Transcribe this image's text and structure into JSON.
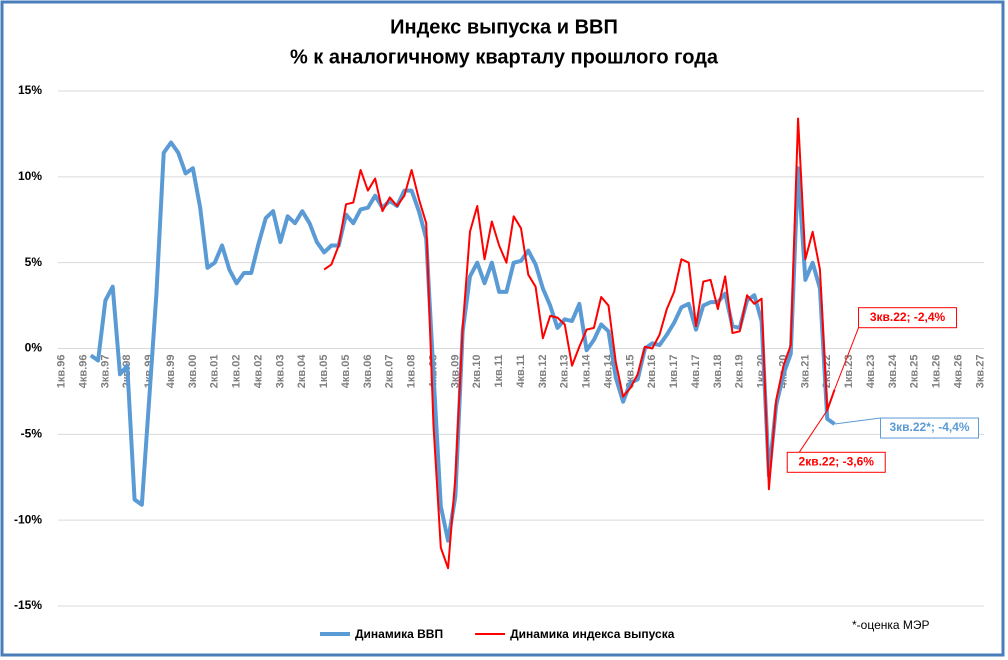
{
  "chart_data": {
    "type": "line",
    "title": "Индекс выпуска и ВВП",
    "subtitle": "% к аналогичному кварталу прошлого года",
    "note": "*-оценка МЭР",
    "categories": [
      "1кв.96",
      null,
      null,
      "4кв.96",
      null,
      null,
      "3кв.97",
      null,
      null,
      "2кв.98",
      null,
      null,
      "1кв.99",
      null,
      null,
      "4кв.99",
      null,
      null,
      "3кв.00",
      null,
      null,
      "2кв.01",
      null,
      null,
      "1кв.02",
      null,
      null,
      "4кв.02",
      null,
      null,
      "3кв.03",
      null,
      null,
      "2кв.04",
      null,
      null,
      "1кв.05",
      null,
      null,
      "4кв.05",
      null,
      null,
      "3кв.06",
      null,
      null,
      "2кв.07",
      null,
      null,
      "1кв.08",
      null,
      null,
      "4кв.08",
      null,
      null,
      "3кв.09",
      null,
      null,
      "2кв.10",
      null,
      null,
      "1кв.11",
      null,
      null,
      "4кв.11",
      null,
      null,
      "3кв.12",
      null,
      null,
      "2кв.13",
      null,
      null,
      "1кв.14",
      null,
      null,
      "4кв.14",
      null,
      null,
      "3кв.15",
      null,
      null,
      "2кв.16",
      null,
      null,
      "1кв.17",
      null,
      null,
      "4кв.17",
      null,
      null,
      "3кв.18",
      null,
      null,
      "2кв.19",
      null,
      null,
      "1кв.20",
      null,
      null,
      "4кв.20",
      null,
      null,
      "3кв.21",
      null,
      null,
      "2кв.22",
      null,
      null,
      "1кв.23",
      null,
      null,
      "4кв.23",
      null,
      null,
      "3кв.24",
      null,
      null,
      "2кв.25",
      null,
      null,
      "1кв.26",
      null,
      null,
      "4кв.26",
      null,
      null,
      "3кв.27"
    ],
    "series": [
      {
        "name": "Динамика ВВП",
        "color": "#5b9bd5",
        "values": [
          null,
          null,
          null,
          null,
          -0.4,
          -0.7,
          2.8,
          3.6,
          -1.5,
          -1.0,
          -8.8,
          -9.1,
          -3.0,
          3.2,
          11.4,
          12.0,
          11.4,
          10.2,
          10.5,
          8.2,
          4.7,
          5.0,
          6.0,
          4.6,
          3.8,
          4.4,
          4.4,
          6.1,
          7.6,
          8.0,
          6.2,
          7.7,
          7.3,
          8.0,
          7.3,
          6.2,
          5.6,
          6.0,
          6.0,
          7.8,
          7.3,
          8.1,
          8.2,
          8.9,
          8.2,
          8.6,
          8.3,
          9.2,
          9.2,
          8.0,
          6.4,
          -1.5,
          -9.2,
          -11.2,
          -8.6,
          1.0,
          4.2,
          5.0,
          3.8,
          5.0,
          3.3,
          3.3,
          5.0,
          5.1,
          5.7,
          4.9,
          3.5,
          2.5,
          1.2,
          1.7,
          1.6,
          2.6,
          -0.1,
          0.5,
          1.4,
          1.0,
          -1.7,
          -3.1,
          -2.0,
          -1.8,
          0.0,
          0.3,
          0.2,
          0.8,
          1.5,
          2.4,
          2.6,
          1.1,
          2.5,
          2.7,
          2.7,
          3.2,
          1.3,
          1.2,
          2.8,
          3.1,
          1.6,
          -7.4,
          -3.3,
          -1.5,
          -0.3,
          10.5,
          4.0,
          5.0,
          3.5,
          -4.1,
          -4.4,
          null,
          null,
          null,
          null,
          null,
          null,
          null,
          null,
          null,
          null,
          null,
          null,
          null,
          null,
          null,
          null,
          null,
          null,
          null,
          null
        ],
        "value_labels": [
          null,
          null,
          null,
          null,
          null,
          null,
          null,
          null,
          null,
          null,
          null,
          null,
          null,
          null,
          null,
          null,
          null,
          null,
          null,
          null,
          null,
          null,
          null,
          null,
          null,
          null,
          null,
          null,
          null,
          null,
          null,
          null,
          null,
          null,
          null,
          null,
          null,
          null,
          null,
          null,
          null,
          null,
          null,
          null,
          null,
          null,
          null,
          null,
          null,
          null,
          null,
          null,
          null,
          null,
          null,
          null,
          null,
          null,
          null,
          null,
          null,
          null,
          null,
          null,
          null,
          null,
          null,
          null,
          null,
          null,
          null,
          null,
          null,
          null,
          null,
          null,
          null,
          null,
          null,
          null,
          null,
          null,
          null,
          null,
          null,
          null,
          null,
          null,
          null,
          null,
          null,
          null,
          null,
          null,
          null,
          null,
          null,
          null,
          null,
          null,
          null,
          null,
          null,
          null,
          null,
          null,
          "3кв.22*; -4,4%",
          null,
          null,
          null,
          null,
          null,
          null,
          null,
          null,
          null,
          null,
          null,
          null,
          null,
          null,
          null,
          null,
          null,
          null,
          null,
          null
        ]
      },
      {
        "name": "Динамика индекса выпуска",
        "color": "#ff0000",
        "values": [
          null,
          null,
          null,
          null,
          null,
          null,
          null,
          null,
          null,
          null,
          null,
          null,
          null,
          null,
          null,
          null,
          null,
          null,
          null,
          null,
          null,
          null,
          null,
          null,
          null,
          null,
          null,
          null,
          null,
          null,
          null,
          null,
          null,
          null,
          null,
          null,
          4.6,
          4.9,
          6.0,
          8.4,
          8.5,
          10.4,
          9.2,
          9.9,
          8.0,
          8.8,
          8.3,
          8.9,
          10.4,
          8.7,
          7.3,
          -4.5,
          -11.6,
          -12.8,
          -7.5,
          1.2,
          6.8,
          8.3,
          5.2,
          7.4,
          6.0,
          5.0,
          7.7,
          7.0,
          4.3,
          3.6,
          0.6,
          1.9,
          1.8,
          1.4,
          -1.0,
          0.1,
          1.1,
          1.2,
          3.0,
          2.5,
          -0.8,
          -2.8,
          -2.3,
          -1.5,
          0.1,
          0.0,
          0.8,
          2.3,
          3.3,
          5.2,
          5.0,
          1.3,
          3.9,
          4.0,
          2.3,
          4.2,
          0.9,
          1.0,
          3.1,
          2.6,
          2.9,
          -8.2,
          -3.0,
          -1.0,
          0.2,
          13.4,
          5.2,
          6.8,
          4.6,
          -3.6,
          -2.4,
          null,
          null,
          null,
          null,
          null,
          null,
          null,
          null,
          null,
          null,
          null,
          null,
          null,
          null,
          null,
          null,
          null,
          null,
          null,
          null
        ],
        "value_labels": [
          null,
          null,
          null,
          null,
          null,
          null,
          null,
          null,
          null,
          null,
          null,
          null,
          null,
          null,
          null,
          null,
          null,
          null,
          null,
          null,
          null,
          null,
          null,
          null,
          null,
          null,
          null,
          null,
          null,
          null,
          null,
          null,
          null,
          null,
          null,
          null,
          null,
          null,
          null,
          null,
          null,
          null,
          null,
          null,
          null,
          null,
          null,
          null,
          null,
          null,
          null,
          null,
          null,
          null,
          null,
          null,
          null,
          null,
          null,
          null,
          null,
          null,
          null,
          null,
          null,
          null,
          null,
          null,
          null,
          null,
          null,
          null,
          null,
          null,
          null,
          null,
          null,
          null,
          null,
          null,
          null,
          null,
          null,
          null,
          null,
          null,
          null,
          null,
          null,
          null,
          null,
          null,
          null,
          null,
          null,
          null,
          null,
          null,
          null,
          null,
          null,
          null,
          null,
          null,
          null,
          "2кв.22; -3,6%",
          "3кв.22; -2,4%",
          null,
          null,
          null,
          null,
          null,
          null,
          null,
          null,
          null,
          null,
          null,
          null,
          null,
          null,
          null,
          null,
          null,
          null,
          null,
          null
        ]
      }
    ],
    "ylim": [
      -15,
      15
    ],
    "yticks": [
      {
        "value": -15,
        "label": "-15%"
      },
      {
        "value": -10,
        "label": "-10%"
      },
      {
        "value": -5,
        "label": "-5%"
      },
      {
        "value": 0,
        "label": "0%"
      },
      {
        "value": 5,
        "label": "5%"
      },
      {
        "value": 10,
        "label": "10%"
      },
      {
        "value": 15,
        "label": "15%"
      }
    ],
    "grid": true,
    "legend": "bottom"
  }
}
